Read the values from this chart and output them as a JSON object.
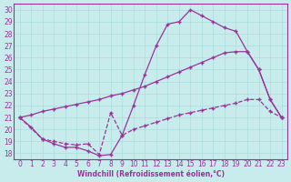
{
  "xlabel": "Windchill (Refroidissement éolien,°C)",
  "xlim": [
    -0.5,
    23.5
  ],
  "ylim": [
    17.5,
    30.5
  ],
  "xticks": [
    0,
    1,
    2,
    3,
    4,
    5,
    6,
    7,
    8,
    9,
    10,
    11,
    12,
    13,
    14,
    15,
    16,
    17,
    18,
    19,
    20,
    21,
    22,
    23
  ],
  "yticks": [
    18,
    19,
    20,
    21,
    22,
    23,
    24,
    25,
    26,
    27,
    28,
    29,
    30
  ],
  "bg_color": "#c8ecec",
  "line_color": "#993399",
  "grid_color": "#aadddd",
  "line1_x": [
    0,
    1,
    2,
    3,
    4,
    5,
    6,
    7,
    8,
    9,
    10,
    11,
    12,
    13,
    14,
    15,
    16,
    17,
    18,
    19,
    20,
    21,
    22,
    23
  ],
  "line1_y": [
    21.0,
    20.2,
    19.2,
    18.8,
    18.5,
    18.5,
    18.2,
    17.8,
    17.9,
    19.5,
    22.0,
    24.6,
    27.0,
    28.8,
    29.0,
    30.0,
    29.5,
    29.0,
    28.5,
    28.2,
    26.5,
    25.0,
    22.5,
    21.0
  ],
  "line2_x": [
    0,
    1,
    2,
    3,
    4,
    5,
    6,
    7,
    8,
    9,
    10,
    11,
    12,
    13,
    14,
    15,
    16,
    17,
    18,
    19,
    20,
    21,
    22,
    23
  ],
  "line2_y": [
    21.0,
    21.2,
    21.5,
    21.7,
    21.9,
    22.1,
    22.3,
    22.5,
    22.8,
    23.0,
    23.3,
    23.6,
    24.0,
    24.4,
    24.8,
    25.2,
    25.6,
    26.0,
    26.4,
    26.5,
    26.5,
    25.0,
    22.5,
    21.0
  ],
  "line3_x": [
    0,
    2,
    3,
    4,
    5,
    6,
    7,
    8,
    9,
    10,
    11,
    12,
    13,
    14,
    15,
    16,
    17,
    18,
    19,
    20,
    21,
    22,
    23
  ],
  "line3_y": [
    21.0,
    19.2,
    19.0,
    18.8,
    18.7,
    18.8,
    17.9,
    21.4,
    19.5,
    20.0,
    20.3,
    20.6,
    20.9,
    21.2,
    21.4,
    21.6,
    21.8,
    22.0,
    22.2,
    22.5,
    22.5,
    21.5,
    21.0
  ]
}
